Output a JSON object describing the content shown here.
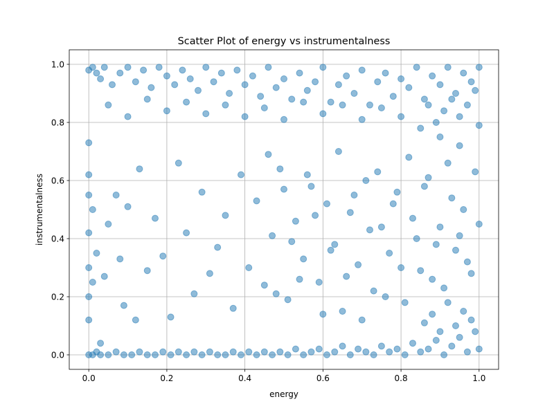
{
  "chart_data": {
    "type": "scatter",
    "title": "Scatter Plot of energy vs instrumentalness",
    "xlabel": "energy",
    "ylabel": "instrumentalness",
    "xlim": [
      -0.05,
      1.05
    ],
    "ylim": [
      -0.05,
      1.05
    ],
    "x_ticks": [
      "0.0",
      "0.2",
      "0.4",
      "0.6",
      "0.8",
      "1.0"
    ],
    "y_ticks": [
      "0.0",
      "0.2",
      "0.4",
      "0.6",
      "0.8",
      "1.0"
    ],
    "grid": true,
    "marker_color": "#1f77b4",
    "marker_alpha": 0.5,
    "series": [
      {
        "points": [
          [
            0.0,
            0.0
          ],
          [
            0.01,
            0.0
          ],
          [
            0.02,
            0.01
          ],
          [
            0.03,
            0.0
          ],
          [
            0.05,
            0.0
          ],
          [
            0.07,
            0.01
          ],
          [
            0.09,
            0.0
          ],
          [
            0.11,
            0.0
          ],
          [
            0.13,
            0.01
          ],
          [
            0.15,
            0.0
          ],
          [
            0.17,
            0.0
          ],
          [
            0.19,
            0.01
          ],
          [
            0.21,
            0.0
          ],
          [
            0.23,
            0.01
          ],
          [
            0.25,
            0.0
          ],
          [
            0.27,
            0.01
          ],
          [
            0.29,
            0.0
          ],
          [
            0.31,
            0.01
          ],
          [
            0.33,
            0.0
          ],
          [
            0.35,
            0.0
          ],
          [
            0.37,
            0.01
          ],
          [
            0.39,
            0.0
          ],
          [
            0.41,
            0.01
          ],
          [
            0.43,
            0.0
          ],
          [
            0.45,
            0.01
          ],
          [
            0.47,
            0.0
          ],
          [
            0.49,
            0.01
          ],
          [
            0.51,
            0.0
          ],
          [
            0.53,
            0.02
          ],
          [
            0.55,
            0.0
          ],
          [
            0.57,
            0.01
          ],
          [
            0.59,
            0.02
          ],
          [
            0.61,
            0.0
          ],
          [
            0.63,
            0.01
          ],
          [
            0.65,
            0.03
          ],
          [
            0.67,
            0.0
          ],
          [
            0.69,
            0.02
          ],
          [
            0.71,
            0.01
          ],
          [
            0.73,
            0.0
          ],
          [
            0.75,
            0.03
          ],
          [
            0.77,
            0.01
          ],
          [
            0.79,
            0.02
          ],
          [
            0.81,
            0.0
          ],
          [
            0.83,
            0.04
          ],
          [
            0.85,
            0.01
          ],
          [
            0.87,
            0.02
          ],
          [
            0.89,
            0.05
          ],
          [
            0.91,
            0.0
          ],
          [
            0.93,
            0.03
          ],
          [
            0.95,
            0.06
          ],
          [
            0.97,
            0.01
          ],
          [
            0.99,
            0.08
          ],
          [
            1.0,
            0.02
          ],
          [
            0.98,
            0.12
          ],
          [
            0.96,
            0.15
          ],
          [
            0.94,
            0.1
          ],
          [
            0.92,
            0.18
          ],
          [
            0.9,
            0.08
          ],
          [
            0.88,
            0.14
          ],
          [
            0.86,
            0.11
          ],
          [
            0.0,
            0.98
          ],
          [
            0.01,
            0.99
          ],
          [
            0.02,
            0.97
          ],
          [
            0.03,
            0.95
          ],
          [
            0.04,
            0.99
          ],
          [
            0.06,
            0.93
          ],
          [
            0.08,
            0.97
          ],
          [
            0.1,
            0.99
          ],
          [
            0.12,
            0.94
          ],
          [
            0.14,
            0.98
          ],
          [
            0.16,
            0.92
          ],
          [
            0.18,
            0.99
          ],
          [
            0.2,
            0.96
          ],
          [
            0.22,
            0.93
          ],
          [
            0.24,
            0.98
          ],
          [
            0.26,
            0.95
          ],
          [
            0.28,
            0.91
          ],
          [
            0.3,
            0.99
          ],
          [
            0.32,
            0.94
          ],
          [
            0.34,
            0.97
          ],
          [
            0.36,
            0.9
          ],
          [
            0.38,
            0.98
          ],
          [
            0.4,
            0.93
          ],
          [
            0.42,
            0.96
          ],
          [
            0.44,
            0.89
          ],
          [
            0.46,
            0.99
          ],
          [
            0.48,
            0.92
          ],
          [
            0.5,
            0.95
          ],
          [
            0.52,
            0.88
          ],
          [
            0.54,
            0.97
          ],
          [
            0.56,
            0.91
          ],
          [
            0.58,
            0.94
          ],
          [
            0.6,
            0.99
          ],
          [
            0.62,
            0.87
          ],
          [
            0.64,
            0.93
          ],
          [
            0.66,
            0.96
          ],
          [
            0.68,
            0.9
          ],
          [
            0.7,
            0.98
          ],
          [
            0.72,
            0.86
          ],
          [
            0.74,
            0.94
          ],
          [
            0.76,
            0.97
          ],
          [
            0.78,
            0.89
          ],
          [
            0.8,
            0.95
          ],
          [
            0.82,
            0.92
          ],
          [
            0.84,
            0.99
          ],
          [
            0.86,
            0.88
          ],
          [
            0.88,
            0.96
          ],
          [
            0.9,
            0.93
          ],
          [
            0.92,
            0.99
          ],
          [
            0.94,
            0.9
          ],
          [
            0.96,
            0.97
          ],
          [
            0.98,
            0.94
          ],
          [
            1.0,
            0.99
          ],
          [
            0.99,
            0.91
          ],
          [
            0.97,
            0.86
          ],
          [
            0.95,
            0.82
          ],
          [
            0.93,
            0.88
          ],
          [
            0.91,
            0.84
          ],
          [
            0.89,
            0.8
          ],
          [
            0.87,
            0.86
          ],
          [
            0.05,
            0.86
          ],
          [
            0.1,
            0.82
          ],
          [
            0.15,
            0.88
          ],
          [
            0.2,
            0.84
          ],
          [
            0.25,
            0.87
          ],
          [
            0.3,
            0.83
          ],
          [
            0.35,
            0.86
          ],
          [
            0.4,
            0.82
          ],
          [
            0.45,
            0.85
          ],
          [
            0.5,
            0.81
          ],
          [
            0.55,
            0.87
          ],
          [
            0.6,
            0.83
          ],
          [
            0.65,
            0.86
          ],
          [
            0.7,
            0.81
          ],
          [
            0.75,
            0.85
          ],
          [
            0.8,
            0.82
          ],
          [
            0.85,
            0.78
          ],
          [
            0.9,
            0.75
          ],
          [
            0.95,
            0.72
          ],
          [
            1.0,
            0.79
          ],
          [
            0.0,
            0.42
          ],
          [
            0.0,
            0.3
          ],
          [
            0.0,
            0.2
          ],
          [
            0.0,
            0.12
          ],
          [
            0.0,
            0.55
          ],
          [
            0.0,
            0.62
          ],
          [
            0.0,
            0.73
          ],
          [
            0.01,
            0.25
          ],
          [
            0.01,
            0.5
          ],
          [
            0.02,
            0.35
          ],
          [
            0.03,
            0.04
          ],
          [
            0.04,
            0.27
          ],
          [
            0.05,
            0.45
          ],
          [
            0.07,
            0.55
          ],
          [
            0.08,
            0.33
          ],
          [
            0.09,
            0.17
          ],
          [
            0.1,
            0.51
          ],
          [
            0.12,
            0.12
          ],
          [
            0.13,
            0.64
          ],
          [
            0.15,
            0.29
          ],
          [
            0.17,
            0.47
          ],
          [
            0.19,
            0.34
          ],
          [
            0.21,
            0.13
          ],
          [
            0.23,
            0.66
          ],
          [
            0.25,
            0.42
          ],
          [
            0.27,
            0.21
          ],
          [
            0.29,
            0.56
          ],
          [
            0.31,
            0.28
          ],
          [
            0.33,
            0.37
          ],
          [
            0.35,
            0.48
          ],
          [
            0.37,
            0.16
          ],
          [
            0.39,
            0.62
          ],
          [
            0.41,
            0.3
          ],
          [
            0.43,
            0.53
          ],
          [
            0.45,
            0.24
          ],
          [
            0.47,
            0.41
          ],
          [
            0.49,
            0.64
          ],
          [
            0.51,
            0.19
          ],
          [
            0.53,
            0.46
          ],
          [
            0.55,
            0.33
          ],
          [
            0.57,
            0.58
          ],
          [
            0.59,
            0.25
          ],
          [
            0.61,
            0.52
          ],
          [
            0.63,
            0.38
          ],
          [
            0.65,
            0.15
          ],
          [
            0.67,
            0.49
          ],
          [
            0.69,
            0.31
          ],
          [
            0.71,
            0.6
          ],
          [
            0.73,
            0.22
          ],
          [
            0.75,
            0.44
          ],
          [
            0.77,
            0.35
          ],
          [
            0.79,
            0.56
          ],
          [
            0.81,
            0.18
          ],
          [
            0.83,
            0.47
          ],
          [
            0.85,
            0.29
          ],
          [
            0.87,
            0.61
          ],
          [
            0.89,
            0.38
          ],
          [
            0.91,
            0.23
          ],
          [
            0.93,
            0.54
          ],
          [
            0.95,
            0.41
          ],
          [
            0.97,
            0.32
          ],
          [
            0.99,
            0.63
          ],
          [
            1.0,
            0.45
          ],
          [
            0.98,
            0.28
          ],
          [
            0.96,
            0.5
          ],
          [
            0.94,
            0.36
          ],
          [
            0.92,
            0.66
          ],
          [
            0.9,
            0.44
          ],
          [
            0.88,
            0.26
          ],
          [
            0.86,
            0.58
          ],
          [
            0.84,
            0.4
          ],
          [
            0.82,
            0.68
          ],
          [
            0.8,
            0.3
          ],
          [
            0.78,
            0.52
          ],
          [
            0.76,
            0.2
          ],
          [
            0.74,
            0.63
          ],
          [
            0.72,
            0.43
          ],
          [
            0.7,
            0.12
          ],
          [
            0.68,
            0.55
          ],
          [
            0.66,
            0.27
          ],
          [
            0.64,
            0.7
          ],
          [
            0.62,
            0.36
          ],
          [
            0.6,
            0.14
          ],
          [
            0.58,
            0.48
          ],
          [
            0.56,
            0.62
          ],
          [
            0.54,
            0.26
          ],
          [
            0.52,
            0.39
          ],
          [
            0.5,
            0.57
          ],
          [
            0.48,
            0.21
          ],
          [
            0.46,
            0.69
          ]
        ]
      }
    ]
  }
}
